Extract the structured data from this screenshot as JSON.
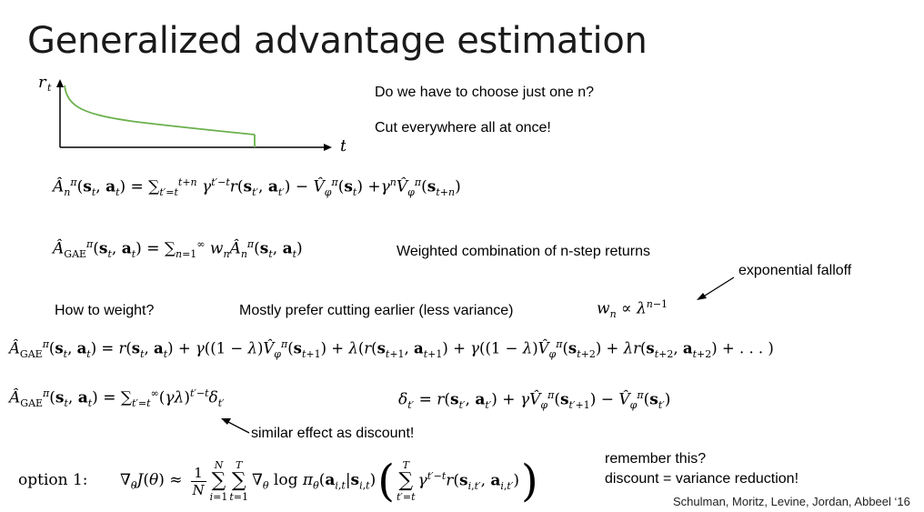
{
  "slide": {
    "title": "Generalized advantage estimation",
    "graph": {
      "y_label": "r",
      "y_sub": "t",
      "x_label": "t",
      "curve_color": "#6ab04c"
    },
    "questions": {
      "q1": "Do we have to choose just one n?",
      "q2": "Cut everywhere all at once!"
    },
    "weighted_label": "Weighted combination of n-step returns",
    "exp_falloff": "exponential falloff",
    "how_to_weight": "How to weight?",
    "prefer_cutting": "Mostly prefer cutting earlier (less variance)",
    "similar_effect": "similar effect as discount!",
    "remember": "remember this?",
    "discount_note": "discount = variance reduction!",
    "option_label": "option 1:",
    "citation": "Schulman, Moritz, Levine, Jordan, Abbeel ‘16"
  }
}
